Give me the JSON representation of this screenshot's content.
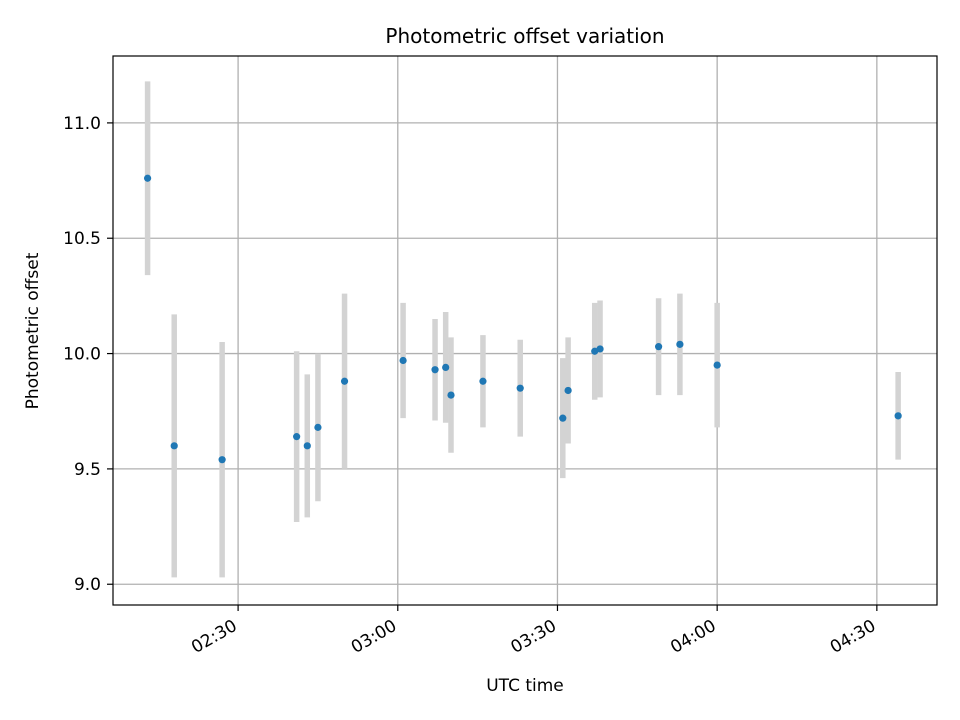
{
  "chart_data": {
    "type": "scatter",
    "title": "Photometric offset variation",
    "xlabel": "UTC time",
    "ylabel": "Photometric offset",
    "x_ticks": [
      "02:30",
      "03:00",
      "03:30",
      "04:00",
      "04:30"
    ],
    "x_tick_minutes": [
      150,
      180,
      210,
      240,
      270
    ],
    "y_ticks": [
      "9.0",
      "9.5",
      "10.0",
      "10.5",
      "11.0"
    ],
    "y_tick_values": [
      9.0,
      9.5,
      10.0,
      10.5,
      11.0
    ],
    "xlim_minutes": [
      126.5,
      281.3
    ],
    "ylim": [
      8.91,
      11.29
    ],
    "grid": true,
    "marker_color": "#1f77b4",
    "errorbar_color": "#d3d3d3",
    "points": [
      {
        "x": "02:13",
        "y": 10.76,
        "err": 0.42
      },
      {
        "x": "02:18",
        "y": 9.6,
        "err": 0.57
      },
      {
        "x": "02:27",
        "y": 9.54,
        "err": 0.51
      },
      {
        "x": "02:41",
        "y": 9.64,
        "err": 0.37
      },
      {
        "x": "02:43",
        "y": 9.6,
        "err": 0.31
      },
      {
        "x": "02:45",
        "y": 9.68,
        "err": 0.32
      },
      {
        "x": "02:50",
        "y": 9.88,
        "err": 0.38
      },
      {
        "x": "03:01",
        "y": 9.97,
        "err": 0.25
      },
      {
        "x": "03:07",
        "y": 9.93,
        "err": 0.22
      },
      {
        "x": "03:09",
        "y": 9.94,
        "err": 0.24
      },
      {
        "x": "03:10",
        "y": 9.82,
        "err": 0.25
      },
      {
        "x": "03:16",
        "y": 9.88,
        "err": 0.2
      },
      {
        "x": "03:23",
        "y": 9.85,
        "err": 0.21
      },
      {
        "x": "03:31",
        "y": 9.72,
        "err": 0.26
      },
      {
        "x": "03:32",
        "y": 9.84,
        "err": 0.23
      },
      {
        "x": "03:37",
        "y": 10.01,
        "err": 0.21
      },
      {
        "x": "03:38",
        "y": 10.02,
        "err": 0.21
      },
      {
        "x": "03:49",
        "y": 10.03,
        "err": 0.21
      },
      {
        "x": "03:53",
        "y": 10.04,
        "err": 0.22
      },
      {
        "x": "04:00",
        "y": 9.95,
        "err": 0.27
      },
      {
        "x": "04:34",
        "y": 9.73,
        "err": 0.19
      }
    ]
  }
}
